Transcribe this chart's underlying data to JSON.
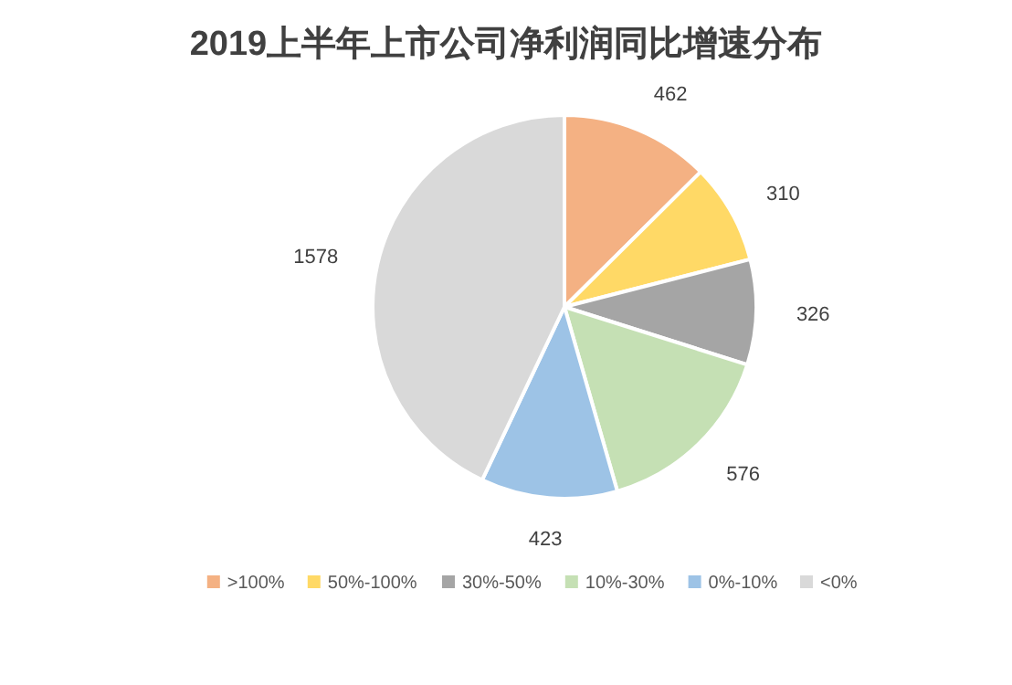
{
  "chart_data": {
    "type": "pie",
    "title": "2019上半年上市公司净利润同比增速分布",
    "categories": [
      ">100%",
      "50%-100%",
      "30%-50%",
      "10%-30%",
      "0%-10%",
      "<0%"
    ],
    "values": [
      462,
      310,
      326,
      576,
      423,
      1578
    ],
    "colors": [
      "#f4b183",
      "#ffd966",
      "#a5a5a5",
      "#c5e0b4",
      "#9dc3e6",
      "#d9d9d9"
    ],
    "data_labels": true,
    "legend": "bottom"
  }
}
